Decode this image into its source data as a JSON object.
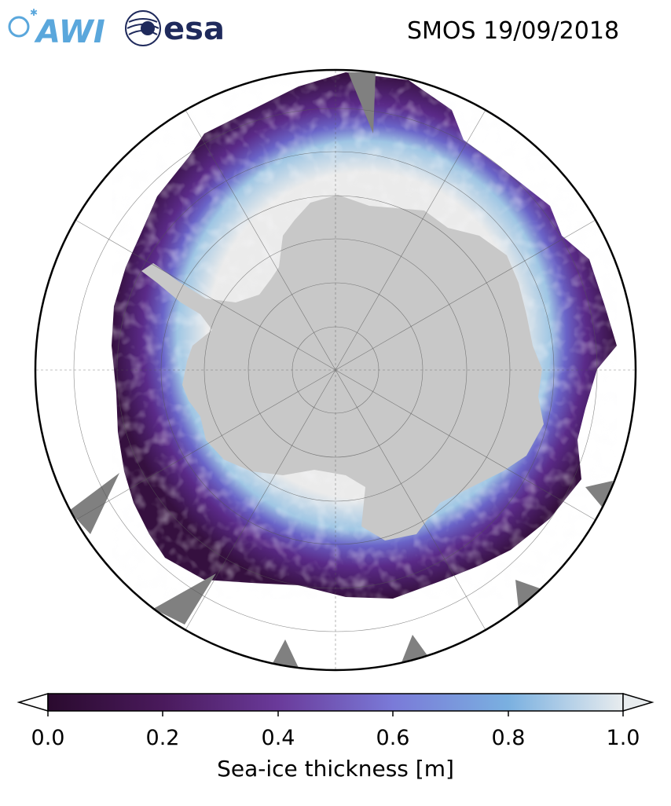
{
  "header": {
    "awi_logo_text": "AWI",
    "esa_logo_text": "esa",
    "title": "SMOS 19/09/2018"
  },
  "colorbar": {
    "label": "Sea-ice thickness [m]",
    "ticks": [
      "0.0",
      "0.2",
      "0.4",
      "0.6",
      "0.8",
      "1.0"
    ],
    "colormap": [
      "#2a0a2e",
      "#4a1a5c",
      "#6a3a9a",
      "#7a7ad8",
      "#7ab0e0",
      "#e8ecee"
    ]
  },
  "map": {
    "region": "Antarctic",
    "land_color": "#c8c8c8",
    "thick_ice_color": "#ebebeb",
    "nodata_color": "#808080"
  }
}
